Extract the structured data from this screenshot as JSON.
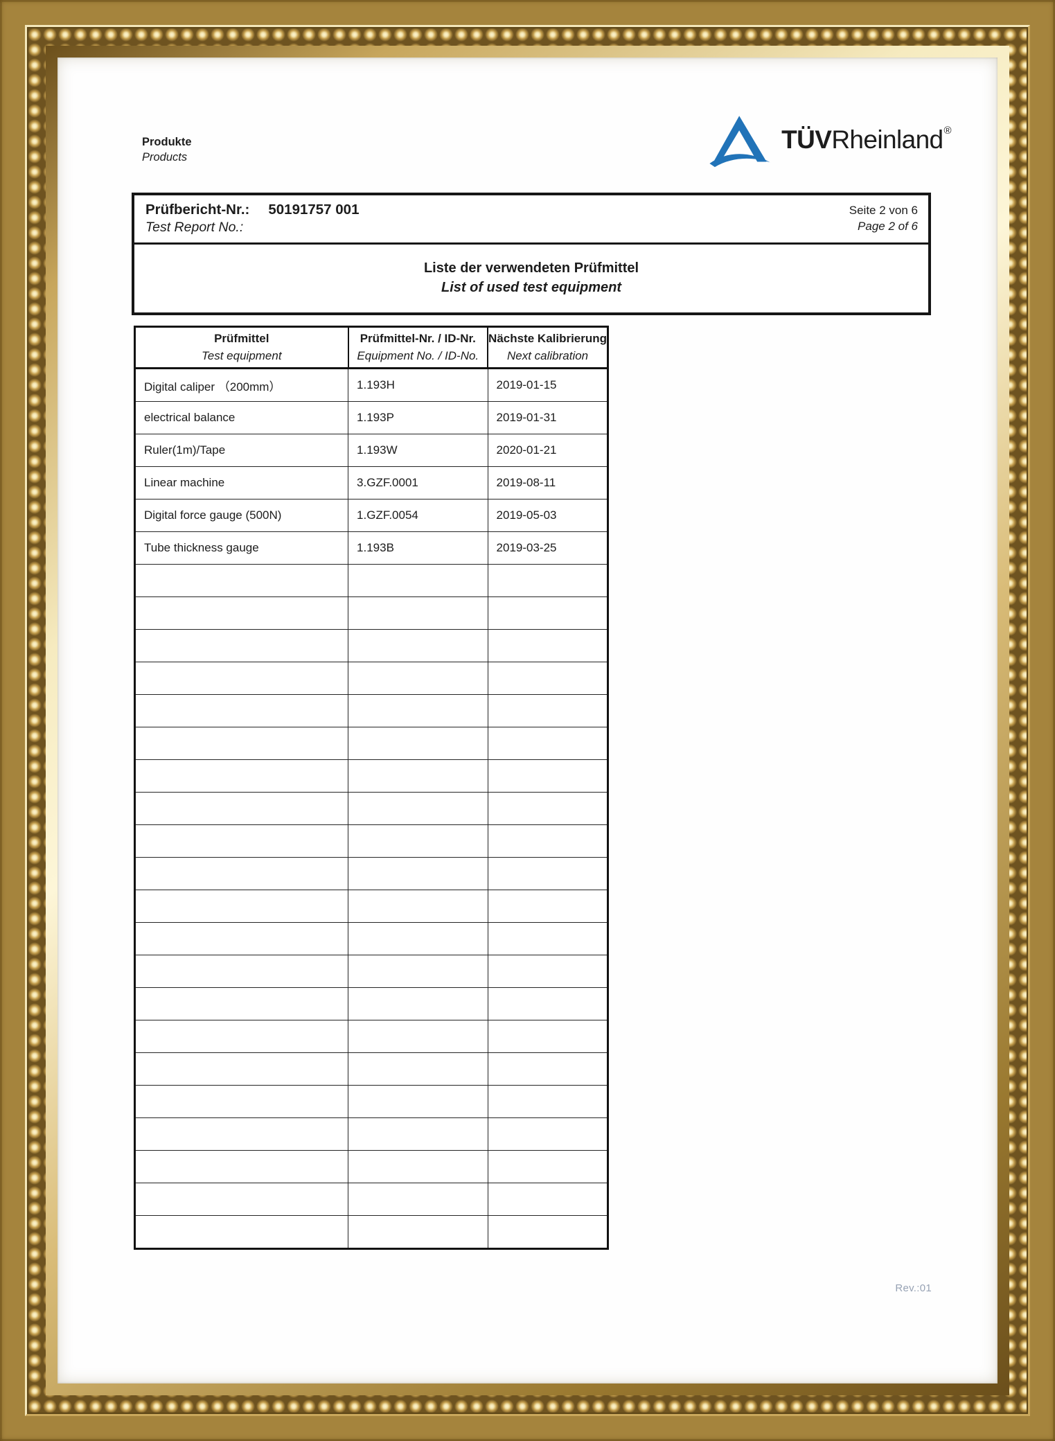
{
  "page": {
    "product_line_de": "Produkte",
    "product_line_en": "Products",
    "rev": "Rev.:01"
  },
  "logo": {
    "tuv_bold": "TÜV",
    "tuv_rest": "Rheinland",
    "registered": "®",
    "brand_blue": "#2173b8"
  },
  "report_header": {
    "label_de": "Prüfbericht-Nr.:",
    "label_en": "Test Report No.:",
    "number": "50191757 001",
    "page_de": "Seite 2 von 6",
    "page_en": "Page 2 of 6"
  },
  "title_block": {
    "title_de": "Liste der verwendeten Prüfmittel",
    "title_en": "List of used test equipment"
  },
  "table": {
    "columns": [
      {
        "de": "Prüfmittel",
        "en": "Test equipment"
      },
      {
        "de": "Prüfmittel-Nr. / ID-Nr.",
        "en": "Equipment No. / ID-No."
      },
      {
        "de": "Nächste Kalibrierung",
        "en": "Next calibration"
      }
    ],
    "col_widths_pct": [
      45.1,
      29.5,
      25.4
    ],
    "rows": [
      [
        "Digital caliper （200mm）",
        "1.193H",
        "2019-01-15"
      ],
      [
        "electrical balance",
        "1.193P",
        "2019-01-31"
      ],
      [
        "Ruler(1m)/Tape",
        "1.193W",
        "2020-01-21"
      ],
      [
        "Linear machine",
        "3.GZF.0001",
        "2019-08-11"
      ],
      [
        "Digital force gauge (500N)",
        "1.GZF.0054",
        "2019-05-03"
      ],
      [
        "Tube thickness gauge",
        "1.193B",
        "2019-03-25"
      ]
    ],
    "empty_row_count": 21
  },
  "colors": {
    "brand_blue": "#2173b8",
    "frame_gold": "#c9a65e",
    "rev_gray": "#97a2b4",
    "border_black": "#161616"
  }
}
